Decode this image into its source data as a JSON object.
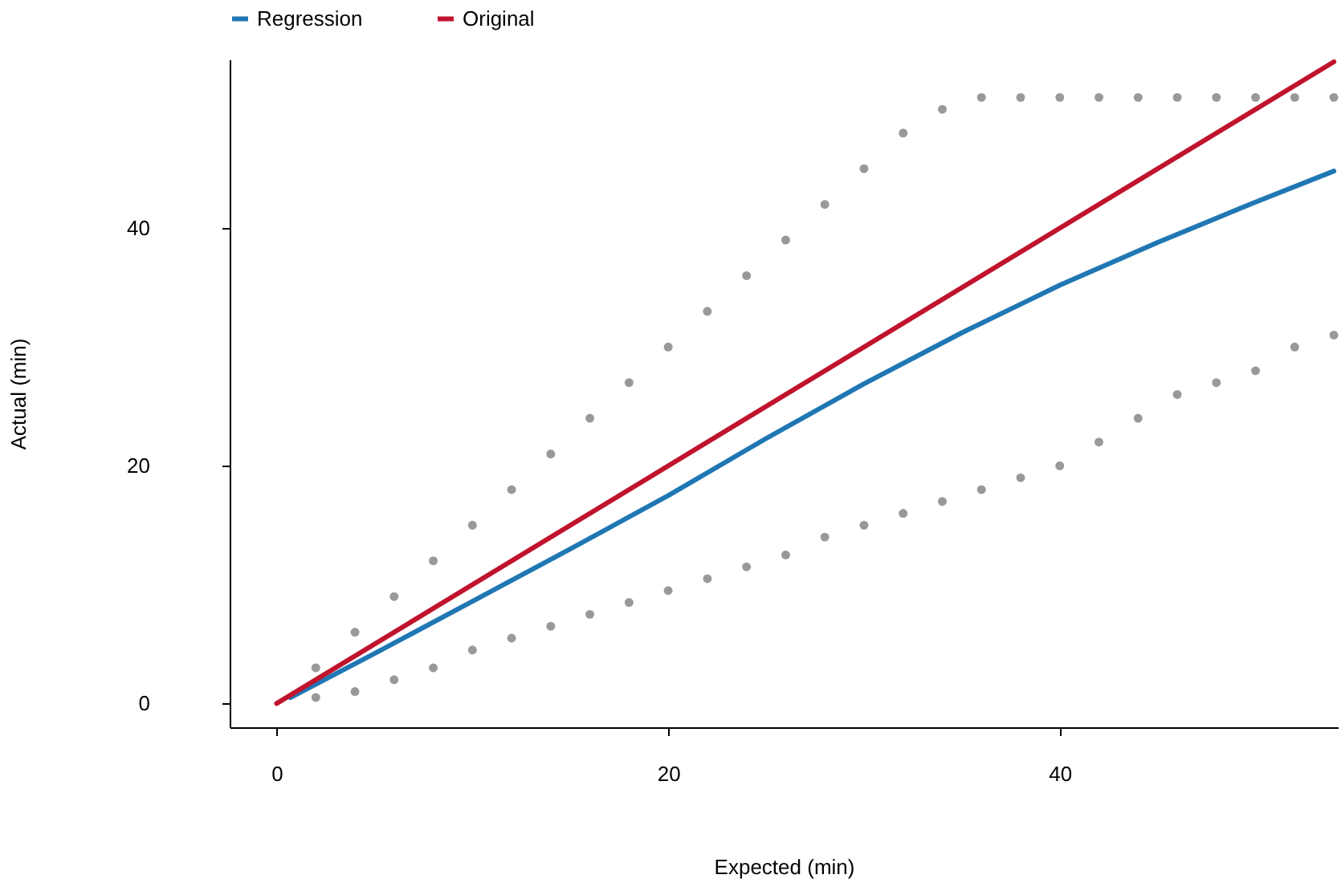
{
  "chart_data": {
    "type": "scatter",
    "xlabel": "Expected (min)",
    "ylabel": "Actual (min)",
    "xlim": [
      -2.4,
      54.2
    ],
    "ylim": [
      -2,
      54.2
    ],
    "xticks": [
      0,
      20,
      40
    ],
    "yticks": [
      0,
      20,
      40
    ],
    "grid": false,
    "legend": "top",
    "series": [
      {
        "color": "#333333",
        "x": [
          2,
          2,
          4,
          4,
          6,
          6,
          8,
          8,
          10,
          10,
          12,
          12,
          14,
          14,
          16,
          16,
          18,
          18,
          20,
          20,
          22,
          22,
          24,
          24,
          26,
          26,
          28,
          28,
          30,
          30,
          32,
          32,
          34,
          34,
          36,
          36,
          38,
          38,
          40,
          40,
          42,
          42,
          44,
          44,
          46,
          46,
          48,
          48,
          50,
          50,
          52,
          52,
          54,
          54
        ],
        "values": [
          0.5,
          3,
          1,
          6,
          2,
          9,
          3,
          12,
          4.5,
          15,
          5.5,
          18,
          6.5,
          21,
          7.5,
          24,
          8.5,
          27,
          9.5,
          30,
          10.5,
          33,
          11.5,
          36,
          12.5,
          39,
          14,
          42,
          15,
          45,
          16,
          48,
          17,
          50,
          18,
          51,
          19,
          51,
          20,
          51,
          22,
          51,
          24,
          51,
          26,
          51,
          27,
          51,
          28,
          51,
          30,
          51,
          31,
          51
        ]
      },
      {
        "type": "line",
        "name": "Regression",
        "color": "#1f77b4",
        "x": [
          0.7,
          5,
          10,
          15,
          20,
          25,
          30,
          35,
          40,
          45,
          50,
          54
        ],
        "values": [
          0.5,
          4.2,
          8.6,
          13,
          17.5,
          22.3,
          26.9,
          31.2,
          35.2,
          38.8,
          42.2,
          44.8
        ]
      },
      {
        "type": "line",
        "name": "Original",
        "color": "#c0132d",
        "x": [
          0,
          54
        ],
        "values": [
          0,
          54
        ]
      }
    ]
  }
}
